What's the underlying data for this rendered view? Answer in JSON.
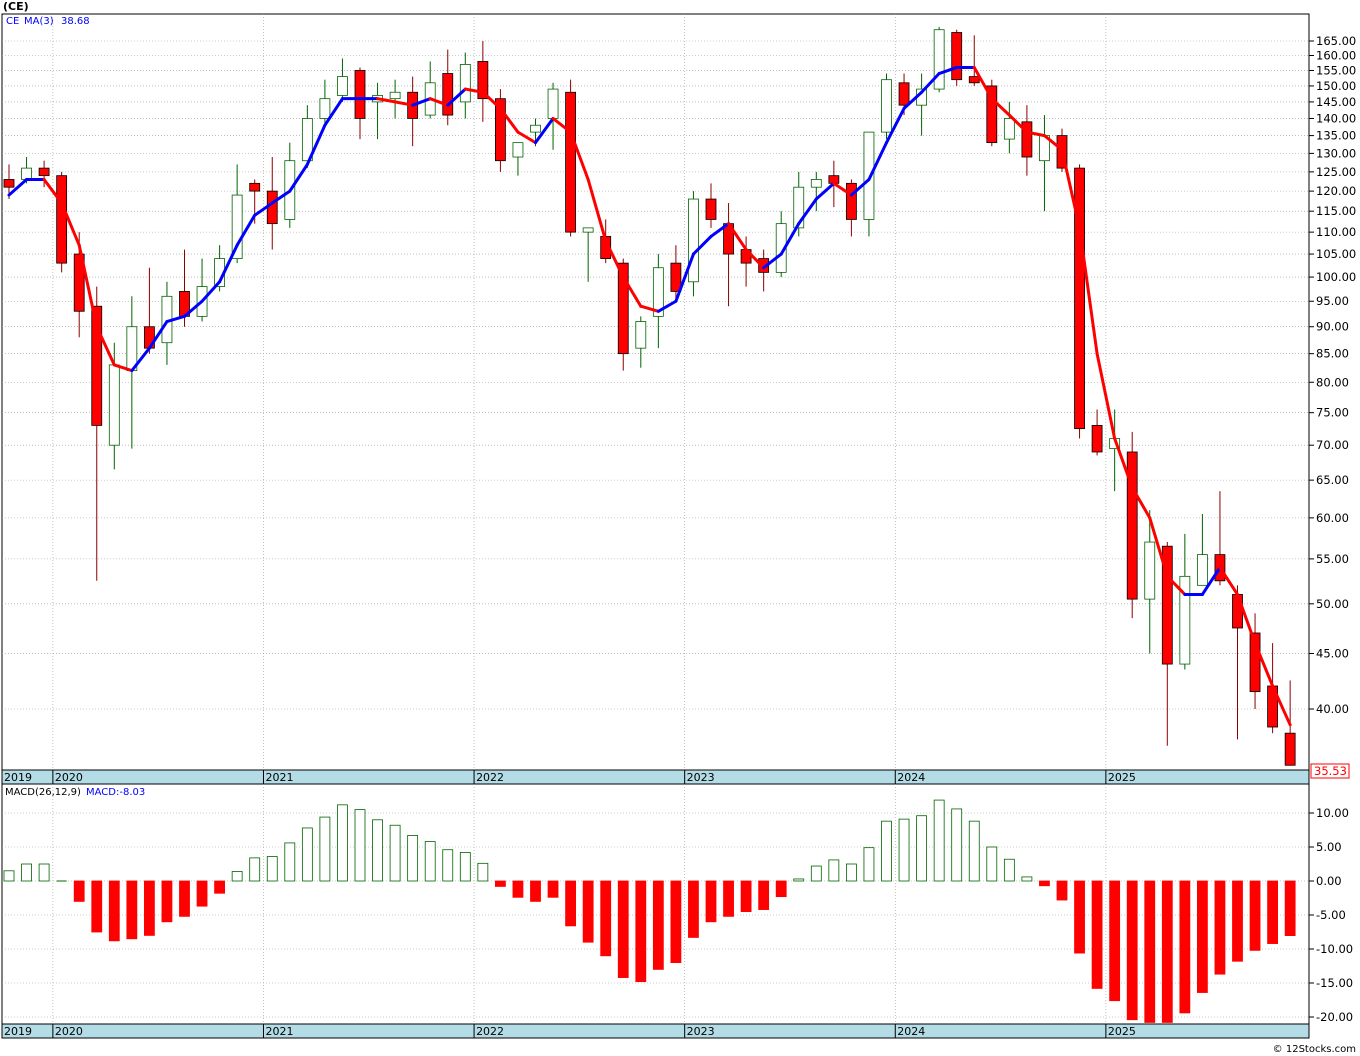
{
  "title": "(CE)",
  "price_panel": {
    "symbol": "CE",
    "ma_label": "MA(3)",
    "ma_value": "38.68",
    "last_price": "35.53"
  },
  "macd_panel": {
    "label": "MACD(26,12,9)",
    "value_label": "MACD:-8.03"
  },
  "watermark": "© 12Stocks.com",
  "colors": {
    "up": "#006400",
    "down": "#ff0000",
    "ma_up": "#0000ff",
    "ma_down": "#ff0000",
    "axis_band": "#b4dce6"
  },
  "chart_data": [
    {
      "type": "candlestick",
      "series_frequency": "monthly",
      "x_axis_labels": [
        "2019",
        "2020",
        "2021",
        "2022",
        "2023",
        "2024",
        "2025"
      ],
      "y_ticks": [
        "165.00",
        "160.00",
        "155.00",
        "150.00",
        "145.00",
        "140.00",
        "135.00",
        "130.00",
        "125.00",
        "120.00",
        "115.00",
        "110.00",
        "105.00",
        "100.00",
        "95.00",
        "90.00",
        "85.00",
        "80.00",
        "75.00",
        "70.00",
        "65.00",
        "60.00",
        "55.00",
        "50.00",
        "45.00",
        "40.00"
      ],
      "y_scale": "log",
      "ylim": [
        35.5,
        170
      ],
      "grid": true,
      "candles": [
        {
          "o": 123,
          "h": 127,
          "l": 118,
          "c": 121
        },
        {
          "o": 123,
          "h": 129,
          "l": 122,
          "c": 126
        },
        {
          "o": 126,
          "h": 128,
          "l": 121,
          "c": 124
        },
        {
          "o": 124,
          "h": 125,
          "l": 101,
          "c": 103
        },
        {
          "o": 105,
          "h": 110,
          "l": 88,
          "c": 93
        },
        {
          "o": 94,
          "h": 98,
          "l": 52.5,
          "c": 73
        },
        {
          "o": 70,
          "h": 87,
          "l": 66.5,
          "c": 83
        },
        {
          "o": 82,
          "h": 96,
          "l": 69.5,
          "c": 90
        },
        {
          "o": 90,
          "h": 102,
          "l": 85,
          "c": 86
        },
        {
          "o": 87,
          "h": 99,
          "l": 83,
          "c": 96
        },
        {
          "o": 97,
          "h": 106,
          "l": 90,
          "c": 92
        },
        {
          "o": 92,
          "h": 104,
          "l": 91,
          "c": 98
        },
        {
          "o": 98,
          "h": 107,
          "l": 97,
          "c": 104
        },
        {
          "o": 104,
          "h": 127,
          "l": 103,
          "c": 119
        },
        {
          "o": 122,
          "h": 123,
          "l": 112,
          "c": 120
        },
        {
          "o": 120,
          "h": 129,
          "l": 106,
          "c": 112
        },
        {
          "o": 113,
          "h": 133,
          "l": 111,
          "c": 128
        },
        {
          "o": 128,
          "h": 144,
          "l": 126,
          "c": 140
        },
        {
          "o": 140,
          "h": 152,
          "l": 138,
          "c": 146
        },
        {
          "o": 147,
          "h": 159,
          "l": 145,
          "c": 153
        },
        {
          "o": 155,
          "h": 156,
          "l": 134,
          "c": 140
        },
        {
          "o": 145,
          "h": 151,
          "l": 134,
          "c": 147
        },
        {
          "o": 146,
          "h": 152,
          "l": 140,
          "c": 148
        },
        {
          "o": 148,
          "h": 153,
          "l": 132,
          "c": 140
        },
        {
          "o": 141,
          "h": 158,
          "l": 140,
          "c": 151
        },
        {
          "o": 154,
          "h": 162,
          "l": 138,
          "c": 141
        },
        {
          "o": 145,
          "h": 161,
          "l": 140,
          "c": 157
        },
        {
          "o": 158,
          "h": 165,
          "l": 139,
          "c": 146
        },
        {
          "o": 146,
          "h": 149,
          "l": 125,
          "c": 128
        },
        {
          "o": 129,
          "h": 133,
          "l": 124,
          "c": 133
        },
        {
          "o": 136,
          "h": 140,
          "l": 132,
          "c": 138
        },
        {
          "o": 140,
          "h": 151,
          "l": 131,
          "c": 149
        },
        {
          "o": 148,
          "h": 152,
          "l": 109,
          "c": 110
        },
        {
          "o": 110,
          "h": 111,
          "l": 99,
          "c": 111
        },
        {
          "o": 109,
          "h": 113,
          "l": 103,
          "c": 104
        },
        {
          "o": 103,
          "h": 104,
          "l": 82,
          "c": 85
        },
        {
          "o": 86,
          "h": 92,
          "l": 82.5,
          "c": 91
        },
        {
          "o": 92,
          "h": 105,
          "l": 86,
          "c": 102
        },
        {
          "o": 103,
          "h": 107,
          "l": 95,
          "c": 97
        },
        {
          "o": 99,
          "h": 120,
          "l": 96,
          "c": 118
        },
        {
          "o": 118,
          "h": 122,
          "l": 111,
          "c": 113
        },
        {
          "o": 112,
          "h": 117,
          "l": 94,
          "c": 105
        },
        {
          "o": 106,
          "h": 109,
          "l": 98,
          "c": 103
        },
        {
          "o": 104,
          "h": 106,
          "l": 97,
          "c": 101
        },
        {
          "o": 101,
          "h": 115,
          "l": 100,
          "c": 112
        },
        {
          "o": 111,
          "h": 125,
          "l": 109,
          "c": 121
        },
        {
          "o": 121,
          "h": 125,
          "l": 115,
          "c": 123
        },
        {
          "o": 124,
          "h": 128,
          "l": 116,
          "c": 122
        },
        {
          "o": 122,
          "h": 123,
          "l": 109,
          "c": 113
        },
        {
          "o": 113,
          "h": 136,
          "l": 109,
          "c": 136
        },
        {
          "o": 136,
          "h": 154,
          "l": 134,
          "c": 152
        },
        {
          "o": 151,
          "h": 154,
          "l": 141,
          "c": 144
        },
        {
          "o": 144,
          "h": 154,
          "l": 135,
          "c": 149
        },
        {
          "o": 149,
          "h": 170,
          "l": 148,
          "c": 169
        },
        {
          "o": 168,
          "h": 169,
          "l": 150,
          "c": 152
        },
        {
          "o": 153,
          "h": 167,
          "l": 150,
          "c": 151
        },
        {
          "o": 150,
          "h": 152,
          "l": 132,
          "c": 133
        },
        {
          "o": 134,
          "h": 145,
          "l": 130,
          "c": 140
        },
        {
          "o": 139,
          "h": 144,
          "l": 124,
          "c": 129
        },
        {
          "o": 128,
          "h": 141,
          "l": 115,
          "c": 135
        },
        {
          "o": 135,
          "h": 137,
          "l": 125,
          "c": 126
        },
        {
          "o": 126,
          "h": 127,
          "l": 71,
          "c": 72.5
        },
        {
          "o": 73,
          "h": 75.5,
          "l": 68.5,
          "c": 69
        },
        {
          "o": 69.5,
          "h": 75.5,
          "l": 63.5,
          "c": 71
        },
        {
          "o": 69,
          "h": 72,
          "l": 48.5,
          "c": 50.5
        },
        {
          "o": 50.5,
          "h": 61,
          "l": 45,
          "c": 57
        },
        {
          "o": 56.5,
          "h": 57,
          "l": 37,
          "c": 44
        },
        {
          "o": 44,
          "h": 58,
          "l": 43.5,
          "c": 53
        },
        {
          "o": 52,
          "h": 60.5,
          "l": 52,
          "c": 55.5
        },
        {
          "o": 55.5,
          "h": 63.5,
          "l": 52,
          "c": 52.5
        },
        {
          "o": 51,
          "h": 52,
          "l": 37.5,
          "c": 47.5
        },
        {
          "o": 47,
          "h": 49,
          "l": 40,
          "c": 41.5
        },
        {
          "o": 42,
          "h": 46,
          "l": 38,
          "c": 38.5
        },
        {
          "o": 38,
          "h": 42.5,
          "l": 35.5,
          "c": 35.5
        }
      ],
      "ma3": [
        119,
        123,
        123,
        117,
        107,
        90,
        83,
        82,
        86,
        91,
        92,
        95,
        99,
        107,
        114,
        117,
        120,
        127,
        138,
        146,
        146,
        146,
        145,
        144,
        146,
        144,
        149,
        148,
        143,
        136,
        133,
        140,
        136,
        123,
        108,
        100,
        94,
        93,
        95,
        105,
        109,
        112,
        106,
        102,
        105,
        112,
        118,
        122,
        119,
        123,
        133,
        143,
        148,
        154,
        156,
        156,
        146,
        141,
        136,
        135,
        131,
        111,
        85,
        71,
        64,
        60,
        53,
        51,
        51,
        54,
        51,
        46,
        42,
        38.68
      ]
    },
    {
      "type": "bar",
      "name": "MACD(26,12,9)",
      "y_ticks": [
        "10.00",
        "5.00",
        "0.00",
        "-5.00",
        "-10.00",
        "-15.00",
        "-20.00"
      ],
      "ylim": [
        -21.5,
        12.5
      ],
      "values": [
        1.5,
        2.5,
        2.5,
        0,
        -3,
        -7.5,
        -8.8,
        -8.5,
        -8,
        -6,
        -5.2,
        -3.7,
        -1.8,
        1.4,
        3.4,
        3.6,
        5.6,
        7.8,
        9.4,
        11.2,
        10.5,
        9,
        8.2,
        6.7,
        5.8,
        4.6,
        4.2,
        2.6,
        -0.8,
        -2.4,
        -3,
        -2.4,
        -6.6,
        -9,
        -11,
        -14.2,
        -14.8,
        -13,
        -12,
        -8.3,
        -6,
        -5.2,
        -4.5,
        -4.2,
        -2.3,
        0.3,
        2.2,
        3.1,
        2.5,
        4.9,
        8.8,
        9.1,
        9.6,
        11.9,
        10.6,
        8.8,
        5,
        3.2,
        0.6,
        -0.7,
        -2.8,
        -10.6,
        -15.8,
        -17.6,
        -20.4,
        -20.8,
        -20.8,
        -19.4,
        -16.4,
        -13.7,
        -11.8,
        -10.2,
        -9.2,
        -8.03
      ]
    }
  ]
}
